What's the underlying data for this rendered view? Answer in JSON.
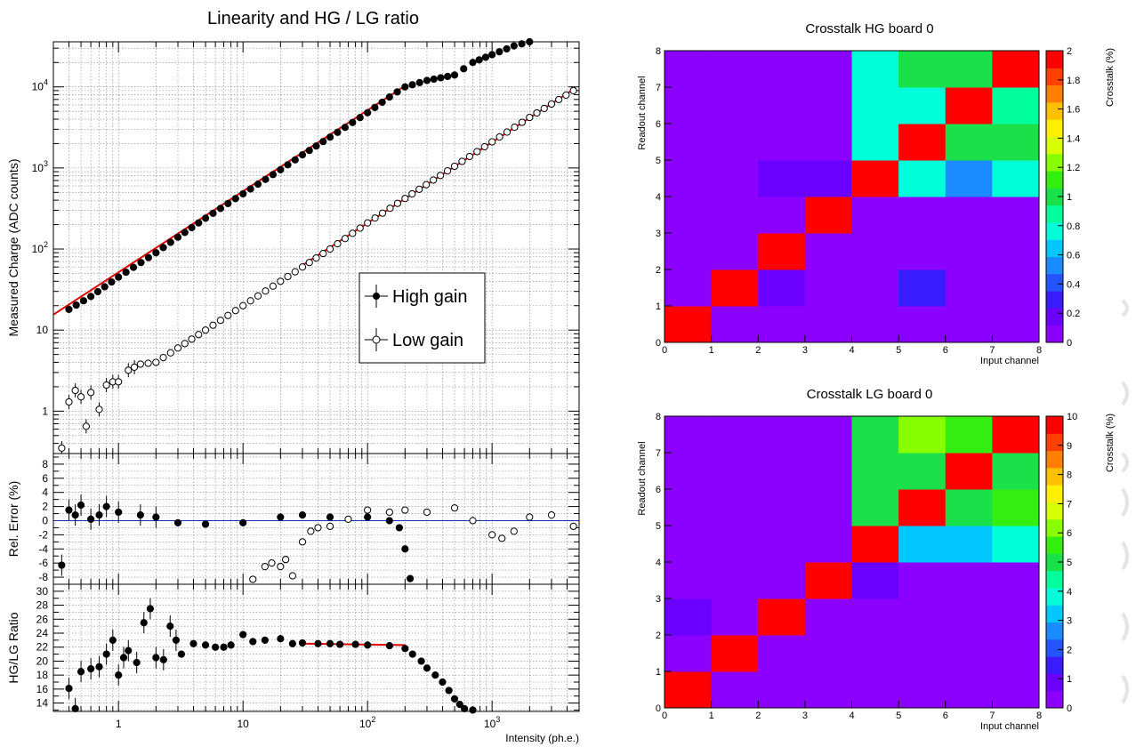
{
  "chart_data": [
    {
      "type": "scatter",
      "title": "Linearity and HG / LG ratio",
      "xscale": "log",
      "xlim": [
        0.3,
        5000
      ],
      "panels": [
        {
          "name": "linearity",
          "ylabel": "Measured Charge (ADC counts)",
          "yscale": "log",
          "ylim": [
            0.3,
            36000
          ],
          "ytick_labels": [
            "1",
            "10",
            "10^2",
            "10^3",
            "10^4"
          ],
          "legend": {
            "placement": "middle-right",
            "entries": [
              "High gain",
              "Low gain"
            ]
          },
          "series": [
            {
              "name": "High gain",
              "marker": "filled-circle",
              "x": [
                0.4,
                0.6,
                1,
                2,
                3,
                5,
                10,
                20,
                30,
                50,
                100,
                150,
                200,
                300,
                500,
                700,
                1000,
                1500,
                2000
              ],
              "y": [
                18,
                26,
                45,
                90,
                140,
                240,
                480,
                950,
                1450,
                2400,
                4800,
                7500,
                10000,
                12000,
                14000,
                20000,
                25000,
                32000,
                36000
              ]
            },
            {
              "name": "Low gain",
              "marker": "open-circle",
              "x": [
                0.35,
                0.4,
                0.45,
                0.5,
                0.55,
                0.6,
                0.7,
                0.8,
                0.9,
                1,
                1.2,
                1.5,
                2,
                3,
                5,
                10,
                20,
                30,
                50,
                100,
                200,
                500,
                1000,
                2000,
                4500
              ],
              "y": [
                0.35,
                1.3,
                1.8,
                1.5,
                0.65,
                1.7,
                1.05,
                2.1,
                2.3,
                2.3,
                3.2,
                3.8,
                4,
                6,
                10,
                20,
                40,
                60,
                100,
                210,
                420,
                1050,
                2100,
                4200,
                9000
              ]
            }
          ],
          "fits": [
            {
              "series": "High gain",
              "color": "#e00000",
              "x": [
                0.3,
                200
              ],
              "y": [
                15.5,
                10300
              ]
            },
            {
              "series": "Low gain",
              "color": "#e00000",
              "x": [
                30,
                4500
              ],
              "y": [
                63,
                9300
              ]
            }
          ]
        },
        {
          "name": "relative-error",
          "ylabel": "Rel. Error (%)",
          "ylim": [
            -9,
            9.5
          ],
          "ytick_labels": [
            "-8",
            "-6",
            "-4",
            "-2",
            "0",
            "2",
            "4",
            "6",
            "8"
          ],
          "reference_line": {
            "y": 0,
            "color": "#1030c0"
          },
          "series": [
            {
              "name": "High gain",
              "marker": "filled-circle",
              "x": [
                0.35,
                0.4,
                0.45,
                0.5,
                0.6,
                0.7,
                0.8,
                1,
                1.5,
                2,
                3,
                5,
                10,
                20,
                30,
                50,
                100,
                150,
                180,
                200,
                220
              ],
              "y": [
                -6.3,
                1.5,
                0.8,
                2.2,
                0.2,
                0.8,
                2.0,
                1.2,
                0.8,
                0.5,
                -0.3,
                -0.5,
                -0.3,
                0.5,
                0.8,
                0.5,
                0.5,
                0,
                -1.0,
                -4.0,
                -8.2
              ]
            },
            {
              "name": "Low gain",
              "marker": "open-circle",
              "x": [
                12,
                15,
                17,
                20,
                22,
                25,
                30,
                35,
                40,
                50,
                70,
                100,
                150,
                200,
                300,
                500,
                700,
                1000,
                1200,
                1500,
                2000,
                3000,
                4500
              ],
              "y": [
                -8.3,
                -6.5,
                -6.0,
                -6.5,
                -5.5,
                -7.8,
                -3.0,
                -1.5,
                -1.0,
                -0.8,
                0.2,
                1.5,
                1.2,
                1.5,
                1.2,
                1.8,
                0,
                -2.0,
                -2.5,
                -1.5,
                0.5,
                0.8,
                -0.8
              ]
            }
          ]
        },
        {
          "name": "hg-lg-ratio",
          "xlabel": "Intensity (ph.e.)",
          "ylabel": "HG/LG Ratio",
          "ylim": [
            12.8,
            31
          ],
          "ytick_labels": [
            "14",
            "16",
            "18",
            "20",
            "22",
            "24",
            "26",
            "28",
            "30"
          ],
          "xtick_labels": [
            "1",
            "10",
            "10^2",
            "10^3"
          ],
          "series": [
            {
              "name": "HG/LG",
              "marker": "filled-circle",
              "x": [
                0.4,
                0.45,
                0.5,
                0.6,
                0.7,
                0.8,
                0.9,
                1,
                1.1,
                1.2,
                1.4,
                1.6,
                1.8,
                2,
                2.3,
                2.6,
                2.9,
                3.2,
                4,
                5,
                6,
                7,
                8,
                10,
                12,
                15,
                20,
                25,
                30,
                40,
                50,
                60,
                80,
                100,
                150,
                200,
                230,
                270,
                300,
                350,
                400,
                450,
                500,
                550,
                600,
                700
              ],
              "y": [
                16.1,
                13.2,
                18.5,
                18.9,
                19.2,
                21.0,
                23.0,
                18.0,
                20.5,
                21.5,
                19.8,
                25.5,
                27.5,
                20.5,
                20.2,
                25.0,
                23.0,
                21.0,
                22.5,
                22.3,
                22.0,
                22.0,
                22.3,
                23.8,
                22.8,
                23.0,
                23.2,
                22.5,
                22.6,
                22.5,
                22.5,
                22.4,
                22.4,
                22.3,
                22.2,
                21.8,
                21.0,
                20.0,
                19.0,
                18.0,
                17.0,
                15.8,
                14.6,
                13.8,
                13.2,
                13.0
              ]
            }
          ],
          "fits": [
            {
              "color": "#e00000",
              "x": [
                30,
                200
              ],
              "y": [
                22.5,
                22.3
              ]
            }
          ]
        }
      ]
    },
    {
      "type": "heatmap",
      "title": "Crosstalk HG board 0",
      "xlabel": "Input channel",
      "ylabel": "Readout channel",
      "colorbar_label": "Crosstalk (%)",
      "zlim": [
        0,
        2
      ],
      "colorbar_ticks": [
        "0",
        "0.2",
        "0.4",
        "0.6",
        "0.8",
        "1",
        "1.2",
        "1.4",
        "1.6",
        "1.8",
        "2"
      ],
      "xtick_labels": [
        "0",
        "1",
        "2",
        "3",
        "4",
        "5",
        "6",
        "7",
        "8"
      ],
      "ytick_labels": [
        "0",
        "1",
        "2",
        "3",
        "4",
        "5",
        "6",
        "7",
        "8"
      ],
      "values": [
        [
          2.0,
          0.12,
          0.05,
          0.04,
          0.04,
          0.12,
          0.05,
          0.03
        ],
        [
          0.05,
          2.0,
          0.18,
          0.05,
          0.05,
          0.27,
          0.12,
          0.05
        ],
        [
          0.04,
          0.05,
          2.0,
          0.04,
          0.04,
          0.04,
          0.04,
          0.03
        ],
        [
          0.04,
          0.04,
          0.05,
          2.0,
          0.05,
          0.05,
          0.12,
          0.04
        ],
        [
          0.04,
          0.04,
          0.13,
          0.13,
          2.0,
          0.8,
          0.6,
          0.85
        ],
        [
          0.04,
          0.04,
          0.04,
          0.04,
          0.85,
          2.0,
          1.05,
          1.1
        ],
        [
          0.04,
          0.04,
          0.04,
          0.12,
          0.78,
          0.78,
          2.0,
          0.9
        ],
        [
          0.04,
          0.04,
          0.04,
          0.04,
          0.85,
          1.1,
          1.1,
          2.0
        ]
      ]
    },
    {
      "type": "heatmap",
      "title": "Crosstalk LG board 0",
      "xlabel": "Input channel",
      "ylabel": "Readout channel",
      "colorbar_label": "Crosstalk (%)",
      "zlim": [
        0,
        10
      ],
      "colorbar_ticks": [
        "0",
        "1",
        "2",
        "3",
        "4",
        "5",
        "6",
        "7",
        "8",
        "9",
        "10"
      ],
      "xtick_labels": [
        "0",
        "1",
        "2",
        "3",
        "4",
        "5",
        "6",
        "7",
        "8"
      ],
      "ytick_labels": [
        "0",
        "1",
        "2",
        "3",
        "4",
        "5",
        "6",
        "7",
        "8"
      ],
      "values": [
        [
          10,
          0.3,
          0.3,
          0.3,
          0.3,
          0.3,
          0.3,
          0.3
        ],
        [
          0.3,
          10,
          0.3,
          0.3,
          0.6,
          0.3,
          0.3,
          0.3
        ],
        [
          0.8,
          0.3,
          10,
          0.3,
          0.3,
          0.3,
          0.3,
          0.3
        ],
        [
          0.3,
          0.3,
          0.3,
          10,
          0.7,
          0.3,
          0.3,
          0.3
        ],
        [
          0.3,
          0.3,
          0.3,
          0.3,
          10,
          3.5,
          3.5,
          4.2
        ],
        [
          0.3,
          0.3,
          0.6,
          0.3,
          5.5,
          10,
          5.5,
          6.0
        ],
        [
          0.3,
          0.3,
          0.3,
          0.3,
          5.5,
          5.2,
          10,
          5.4
        ],
        [
          0.3,
          0.3,
          0.3,
          0.3,
          5.5,
          6.3,
          5.7,
          10
        ]
      ]
    }
  ]
}
